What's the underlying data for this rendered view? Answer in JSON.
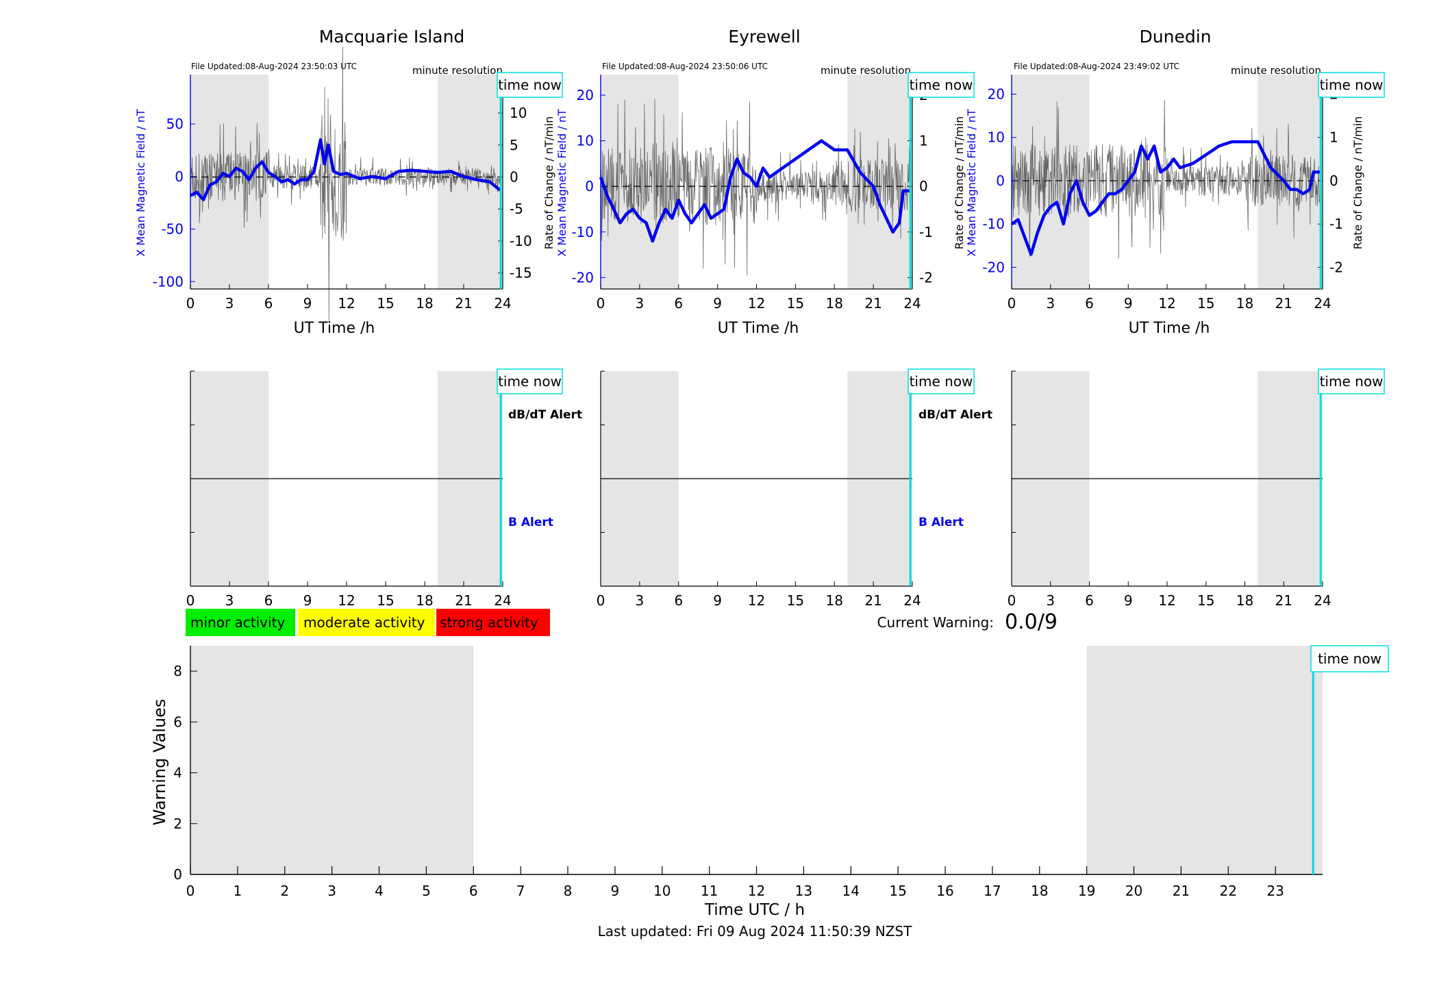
{
  "footer": {
    "last_updated": "Last updated: Fri 09 Aug 2024 11:50:39 NZST"
  },
  "legend": {
    "minor": "minor activity",
    "moderate": "moderate activity",
    "strong": "strong activity"
  },
  "warning": {
    "label": "Current Warning:",
    "value": "0.0/9"
  },
  "colors": {
    "x_field": "#0000ee",
    "rate": "#444444",
    "time_now": "#00dddd",
    "night_shade": "#e5e5e5",
    "minor": "#00ee00",
    "moderate": "#ffff00",
    "strong": "#ff0000"
  },
  "chart_data": [
    {
      "type": "line",
      "title": "Macquarie Island",
      "file_updated": "File Updated:08-Aug-2024 23:50:03 UTC",
      "resolution": "minute resolution",
      "time_now_label": "time now",
      "time_now_h": 23.85,
      "night_shading_h": [
        [
          0,
          6
        ],
        [
          19,
          24
        ]
      ],
      "xlabel": "UT Time /h",
      "xlim": [
        0,
        24
      ],
      "xticks": [
        0,
        3,
        6,
        9,
        12,
        15,
        18,
        21,
        24
      ],
      "ylabel_left": "X Mean Magnetic Field / nT",
      "ylim_left": [
        -107,
        97
      ],
      "yticks_left": [
        50,
        0,
        -50,
        -100
      ],
      "ylabel_right": "Rate of Change / nT/min",
      "ylim_right": [
        -17.5,
        16
      ],
      "yticks_right": [
        15,
        10,
        5,
        0,
        -5,
        -10,
        -15
      ],
      "series": [
        {
          "name": "X Mean Magnetic Field / nT",
          "axis": "left",
          "x": [
            0,
            0.5,
            1,
            1.5,
            2,
            2.5,
            3,
            3.5,
            4,
            4.5,
            5,
            5.5,
            6,
            6.5,
            7,
            7.5,
            8,
            8.5,
            9,
            9.5,
            10,
            10.3,
            10.6,
            11,
            11.5,
            12,
            13,
            14,
            15,
            16,
            17,
            18,
            19,
            20,
            21,
            22,
            23,
            23.8
          ],
          "y": [
            -18,
            -15,
            -22,
            -8,
            -5,
            3,
            0,
            8,
            5,
            -3,
            8,
            14,
            4,
            0,
            -5,
            -3,
            -7,
            -3,
            -3,
            5,
            35,
            12,
            30,
            5,
            2,
            3,
            -2,
            0,
            -2,
            5,
            6,
            5,
            4,
            5,
            0,
            -3,
            -5,
            -13
          ]
        }
      ]
    },
    {
      "type": "line",
      "title": "Eyrewell",
      "file_updated": "File Updated:08-Aug-2024 23:50:06 UTC",
      "resolution": "minute resolution",
      "time_now_label": "time now",
      "time_now_h": 23.85,
      "night_shading_h": [
        [
          0,
          6
        ],
        [
          19,
          24
        ]
      ],
      "xlabel": "UT Time /h",
      "xlim": [
        0,
        24
      ],
      "xticks": [
        0,
        3,
        6,
        9,
        12,
        15,
        18,
        21,
        24
      ],
      "ylabel_left": "X Mean Magnetic Field / nT",
      "ylim_left": [
        -22.5,
        24.5
      ],
      "yticks_left": [
        20,
        10,
        0,
        -10,
        -20
      ],
      "ylabel_right": "Rate of Change / nT/min",
      "ylim_right": [
        -2.25,
        2.45
      ],
      "yticks_right": [
        2,
        1,
        0,
        -1,
        -2
      ],
      "series": [
        {
          "name": "X Mean Magnetic Field / nT",
          "axis": "left",
          "x": [
            0,
            0.5,
            1,
            1.5,
            2,
            2.5,
            3,
            3.5,
            4,
            4.5,
            5,
            5.5,
            6,
            6.5,
            7,
            7.5,
            8,
            8.5,
            9,
            9.5,
            10,
            10.5,
            11,
            11.5,
            12,
            12.5,
            13,
            14,
            15,
            16,
            17,
            18,
            19,
            20,
            21,
            21.5,
            22,
            22.5,
            23,
            23.3,
            23.8
          ],
          "y": [
            2,
            -2,
            -5,
            -8,
            -6,
            -5,
            -7,
            -8,
            -12,
            -8,
            -5,
            -7,
            -3,
            -6,
            -8,
            -6,
            -4,
            -7,
            -6,
            -5,
            2,
            6,
            3,
            2,
            0,
            4,
            2,
            4,
            6,
            8,
            10,
            8,
            8,
            3,
            0,
            -4,
            -7,
            -10,
            -8,
            -1,
            -1
          ]
        }
      ]
    },
    {
      "type": "line",
      "title": "Dunedin",
      "file_updated": "File Updated:08-Aug-2024 23:49:02 UTC",
      "resolution": "minute resolution",
      "time_now_label": "time now",
      "time_now_h": 23.85,
      "night_shading_h": [
        [
          0,
          6
        ],
        [
          19,
          24
        ]
      ],
      "xlabel": "UT Time /h",
      "xlim": [
        0,
        24
      ],
      "xticks": [
        0,
        3,
        6,
        9,
        12,
        15,
        18,
        21,
        24
      ],
      "ylabel_left": "X Mean Magnetic Field / nT",
      "ylim_left": [
        -25,
        24.5
      ],
      "yticks_left": [
        20,
        10,
        0,
        -10,
        -20
      ],
      "ylabel_right": "Rate of Change / nT/min",
      "ylim_right": [
        -2.5,
        2.45
      ],
      "yticks_right": [
        2,
        1,
        0,
        -1,
        -2
      ],
      "series": [
        {
          "name": "X Mean Magnetic Field / nT",
          "axis": "left",
          "x": [
            0,
            0.5,
            1,
            1.5,
            2,
            2.5,
            3,
            3.5,
            4,
            4.5,
            5,
            5.5,
            6,
            6.5,
            7,
            7.5,
            8,
            8.5,
            9,
            9.5,
            10,
            10.5,
            11,
            11.5,
            12,
            12.5,
            13,
            14,
            15,
            16,
            17,
            18,
            19,
            20,
            21,
            21.5,
            22,
            22.5,
            23,
            23.3,
            23.8
          ],
          "y": [
            -10,
            -9,
            -13,
            -17,
            -12,
            -8,
            -6,
            -5,
            -10,
            -3,
            0,
            -5,
            -8,
            -7,
            -5,
            -3,
            -3,
            -2,
            0,
            2,
            8,
            5,
            8,
            2,
            3,
            5,
            3,
            4,
            6,
            8,
            9,
            9,
            9,
            3,
            0,
            -2,
            -2,
            -3,
            -2,
            2,
            2
          ]
        }
      ]
    },
    {
      "type": "line",
      "alert_panel": "Macquarie Island",
      "labels": [
        "dB/dT Alert",
        "B Alert"
      ],
      "time_now_label": "time now",
      "time_now_h": 23.85,
      "night_shading_h": [
        [
          0,
          6
        ],
        [
          19,
          24
        ]
      ],
      "xlim": [
        0,
        24
      ],
      "xticks": [
        0,
        3,
        6,
        9,
        12,
        15,
        18,
        21,
        24
      ],
      "series": [
        {
          "name": "alert",
          "x": [
            0,
            24
          ],
          "y": [
            0,
            0
          ]
        }
      ]
    },
    {
      "type": "line",
      "alert_panel": "Eyrewell",
      "labels": [
        "dB/dT Alert",
        "B Alert"
      ],
      "time_now_label": "time now",
      "time_now_h": 23.85,
      "night_shading_h": [
        [
          0,
          6
        ],
        [
          19,
          24
        ]
      ],
      "xlim": [
        0,
        24
      ],
      "xticks": [
        0,
        3,
        6,
        9,
        12,
        15,
        18,
        21,
        24
      ],
      "series": [
        {
          "name": "alert",
          "x": [
            0,
            24
          ],
          "y": [
            0,
            0
          ]
        }
      ]
    },
    {
      "type": "line",
      "alert_panel": "Dunedin",
      "labels": [],
      "time_now_label": "time now",
      "time_now_h": 23.85,
      "night_shading_h": [
        [
          0,
          6
        ],
        [
          19,
          24
        ]
      ],
      "xlim": [
        0,
        24
      ],
      "xticks": [
        0,
        3,
        6,
        9,
        12,
        15,
        18,
        21,
        24
      ],
      "series": [
        {
          "name": "alert",
          "x": [
            0,
            24
          ],
          "y": [
            0,
            0
          ]
        }
      ]
    },
    {
      "type": "bar",
      "title": "",
      "xlabel": "Time UTC / h",
      "ylabel": "Warning Values",
      "xlim": [
        0,
        24
      ],
      "ylim": [
        0,
        9
      ],
      "xticks": [
        0,
        1,
        2,
        3,
        4,
        5,
        6,
        7,
        8,
        9,
        10,
        11,
        12,
        13,
        14,
        15,
        16,
        17,
        18,
        19,
        20,
        21,
        22,
        23
      ],
      "yticks": [
        0,
        2,
        4,
        6,
        8
      ],
      "night_shading_h": [
        [
          0,
          6
        ],
        [
          19,
          24
        ]
      ],
      "time_now_label": "time now",
      "time_now_h": 23.8,
      "categories": [],
      "values": []
    }
  ]
}
